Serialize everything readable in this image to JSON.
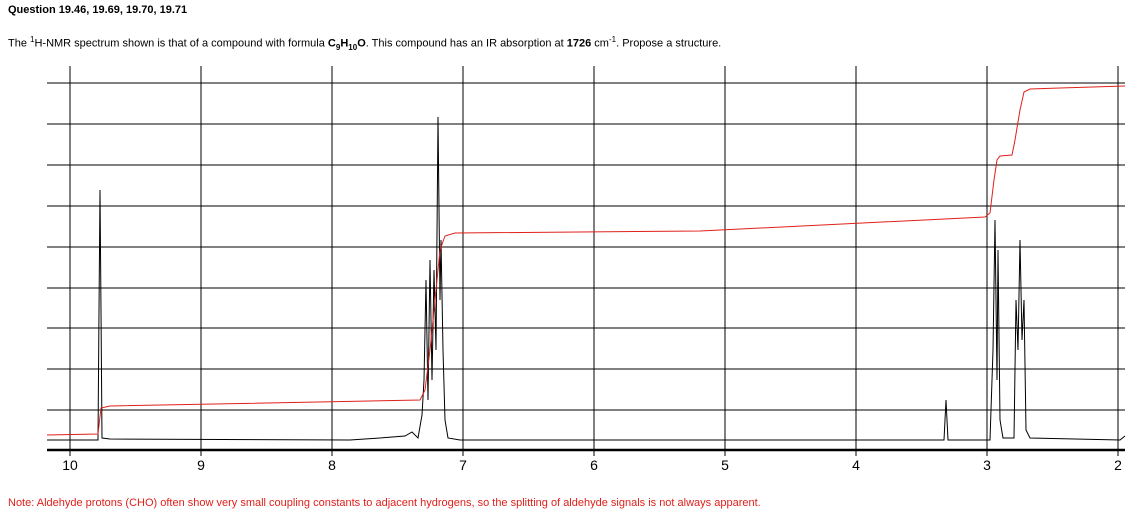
{
  "header": {
    "title": "Question 19.46, 19.69, 19.70, 19.71"
  },
  "question": {
    "segments": [
      {
        "text": "The ",
        "style": "normal"
      },
      {
        "text": "1",
        "style": "sup"
      },
      {
        "text": "H-NMR spectrum shown is that of a compound with formula ",
        "style": "normal"
      },
      {
        "text": "C",
        "style": "bold"
      },
      {
        "text": "9",
        "style": "bold-sub"
      },
      {
        "text": "H",
        "style": "bold"
      },
      {
        "text": "10",
        "style": "bold-sub"
      },
      {
        "text": "O",
        "style": "bold"
      },
      {
        "text": ". This compound has an IR absorption at ",
        "style": "normal"
      },
      {
        "text": "1726",
        "style": "bold"
      },
      {
        "text": " cm",
        "style": "normal"
      },
      {
        "text": "-1",
        "style": "sup"
      },
      {
        "text": ". Propose a structure.",
        "style": "normal"
      }
    ]
  },
  "spectrum": {
    "xticks": [
      10,
      9,
      8,
      7,
      6,
      5,
      4,
      3,
      2
    ]
  },
  "note": "Note: Aldehyde protons (CHO) often show very small coupling constants to adjacent hydrogens, so the splitting of aldehyde signals is not always apparent."
}
